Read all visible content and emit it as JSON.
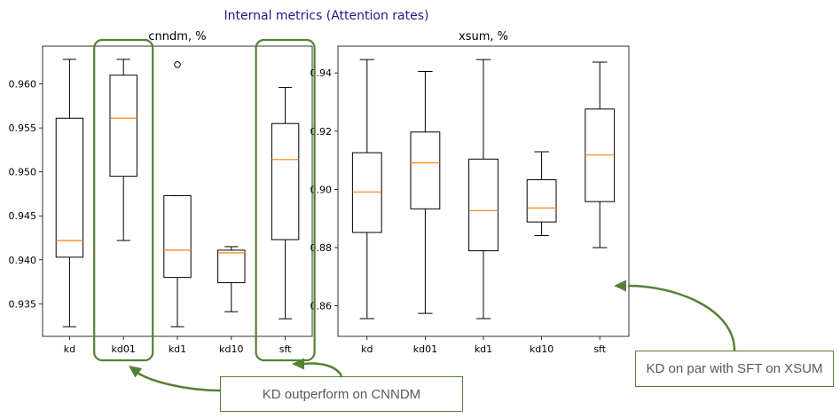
{
  "header": {
    "title": "Internal metrics (Attention rates)"
  },
  "colors": {
    "box": "#000000",
    "median": "#ff7f0e",
    "highlight": "#538135",
    "annotation_text": "#595959",
    "header_text": "#1a1a8c"
  },
  "chart_data": [
    {
      "type": "box",
      "title": "cnndm, %",
      "xlabel": "",
      "ylabel": "",
      "categories": [
        "kd",
        "kd01",
        "kd1",
        "kd10",
        "sft"
      ],
      "ylim": [
        0.9313,
        0.9643
      ],
      "yticks": [
        0.935,
        0.94,
        0.945,
        0.95,
        0.955,
        0.96
      ],
      "ytick_labels": [
        "0.935",
        "0.940",
        "0.945",
        "0.950",
        "0.955",
        "0.960"
      ],
      "boxes": [
        {
          "label": "kd",
          "whislo": 0.9324,
          "q1": 0.9403,
          "med": 0.9422,
          "q3": 0.9561,
          "whishi": 0.9628,
          "fliers": []
        },
        {
          "label": "kd01",
          "whislo": 0.9422,
          "q1": 0.9495,
          "med": 0.9561,
          "q3": 0.961,
          "whishi": 0.9628,
          "fliers": []
        },
        {
          "label": "kd1",
          "whislo": 0.9324,
          "q1": 0.938,
          "med": 0.9411,
          "q3": 0.9473,
          "whishi": 0.9473,
          "fliers": [
            0.9622
          ]
        },
        {
          "label": "kd10",
          "whislo": 0.9341,
          "q1": 0.9374,
          "med": 0.9408,
          "q3": 0.9411,
          "whishi": 0.9415,
          "fliers": []
        },
        {
          "label": "sft",
          "whislo": 0.9333,
          "q1": 0.9423,
          "med": 0.9514,
          "q3": 0.9555,
          "whishi": 0.9596,
          "fliers": []
        }
      ],
      "highlighted": [
        "kd01",
        "sft"
      ],
      "grid": false
    },
    {
      "type": "box",
      "title": "xsum, %",
      "xlabel": "",
      "ylabel": "",
      "categories": [
        "kd",
        "kd01",
        "kd1",
        "kd10",
        "sft"
      ],
      "ylim": [
        0.8495,
        0.9492
      ],
      "yticks": [
        0.86,
        0.88,
        0.9,
        0.92,
        0.94
      ],
      "ytick_labels": [
        "0.86",
        "0.88",
        "0.90",
        "0.92",
        "0.94"
      ],
      "boxes": [
        {
          "label": "kd",
          "whislo": 0.8556,
          "q1": 0.8852,
          "med": 0.8991,
          "q3": 0.9126,
          "whishi": 0.9446,
          "fliers": []
        },
        {
          "label": "kd01",
          "whislo": 0.8574,
          "q1": 0.8933,
          "med": 0.9091,
          "q3": 0.9197,
          "whishi": 0.9405,
          "fliers": []
        },
        {
          "label": "kd1",
          "whislo": 0.8556,
          "q1": 0.8789,
          "med": 0.8927,
          "q3": 0.9104,
          "whishi": 0.9446,
          "fliers": []
        },
        {
          "label": "kd10",
          "whislo": 0.8841,
          "q1": 0.8888,
          "med": 0.8936,
          "q3": 0.9033,
          "whishi": 0.9129,
          "fliers": []
        },
        {
          "label": "sft",
          "whislo": 0.88,
          "q1": 0.8958,
          "med": 0.9118,
          "q3": 0.9276,
          "whishi": 0.9437,
          "fliers": []
        }
      ],
      "grid": false
    }
  ],
  "annotations": [
    {
      "text": "KD outperform on CNNDM"
    },
    {
      "text": "KD on par with SFT on XSUM"
    }
  ]
}
